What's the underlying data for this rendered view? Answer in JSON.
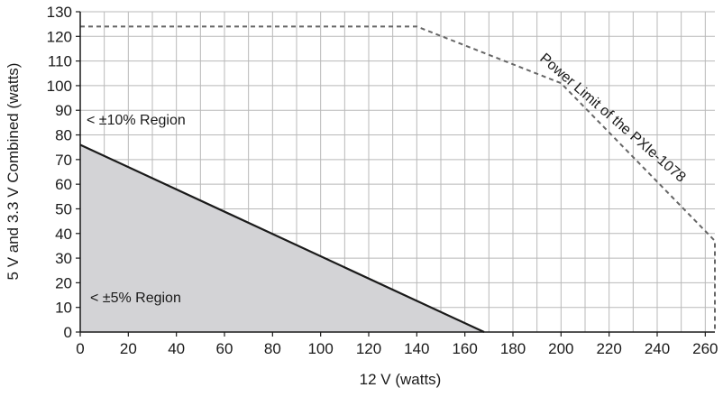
{
  "chart_data": {
    "type": "area",
    "xlabel": "12 V (watts)",
    "ylabel": "5 V and 3.3 V Combined (watts)",
    "xlim": [
      0,
      264
    ],
    "ylim": [
      0,
      130
    ],
    "x_ticks": [
      0,
      20,
      40,
      60,
      80,
      100,
      120,
      140,
      160,
      180,
      200,
      220,
      240,
      260
    ],
    "y_ticks": [
      0,
      10,
      20,
      30,
      40,
      50,
      60,
      70,
      80,
      90,
      100,
      110,
      120,
      130
    ],
    "grid": true,
    "series": [
      {
        "style": "solid-filled",
        "fill_color": "#d3d3d6",
        "line_color": "#1a1a1a",
        "points": [
          [
            0,
            76
          ],
          [
            168,
            0
          ]
        ]
      },
      {
        "style": "dashed",
        "line_color": "#666666",
        "points": [
          [
            0,
            124
          ],
          [
            140,
            124
          ],
          [
            200,
            101
          ],
          [
            264,
            37
          ],
          [
            264,
            0
          ]
        ]
      }
    ],
    "annotations": [
      {
        "id": "region10",
        "text": "< ±10% Region"
      },
      {
        "id": "region5",
        "text": "< ±5% Region"
      },
      {
        "id": "power_limit",
        "text": "Power Limit of the PXIe-1078"
      }
    ]
  }
}
